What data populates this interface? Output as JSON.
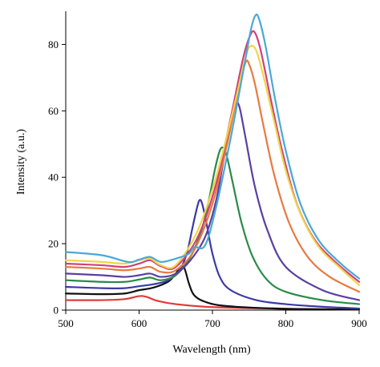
{
  "chart_data": {
    "type": "line",
    "title": "",
    "xlabel": "Wavelength (nm)",
    "ylabel": "Intensity (a.u.)",
    "xlim": [
      500,
      900
    ],
    "ylim": [
      0,
      90
    ],
    "x_ticks": [
      500,
      600,
      700,
      800,
      900
    ],
    "y_ticks": [
      0,
      20,
      40,
      60,
      80
    ],
    "grid": false,
    "legend": "none",
    "series": [
      {
        "color": "#e03a3a",
        "points": [
          [
            500,
            3
          ],
          [
            550,
            3
          ],
          [
            580,
            3.3
          ],
          [
            600,
            4.2
          ],
          [
            610,
            4
          ],
          [
            625,
            2.8
          ],
          [
            650,
            1.8
          ],
          [
            700,
            0.9
          ],
          [
            800,
            0.4
          ],
          [
            900,
            0.2
          ]
        ]
      },
      {
        "color": "#111111",
        "points": [
          [
            500,
            5
          ],
          [
            550,
            4.8
          ],
          [
            580,
            5
          ],
          [
            600,
            6
          ],
          [
            620,
            6.8
          ],
          [
            640,
            8.6
          ],
          [
            650,
            11
          ],
          [
            657,
            13.2
          ],
          [
            662,
            12.5
          ],
          [
            668,
            8
          ],
          [
            675,
            4.5
          ],
          [
            690,
            2.5
          ],
          [
            720,
            1.2
          ],
          [
            800,
            0.4
          ],
          [
            900,
            0.2
          ]
        ]
      },
      {
        "color": "#3a3aa8",
        "points": [
          [
            500,
            7
          ],
          [
            550,
            6.6
          ],
          [
            580,
            6.6
          ],
          [
            600,
            7.2
          ],
          [
            620,
            7.8
          ],
          [
            640,
            9
          ],
          [
            655,
            12
          ],
          [
            665,
            17
          ],
          [
            672,
            24
          ],
          [
            677,
            29
          ],
          [
            682,
            33
          ],
          [
            686,
            32
          ],
          [
            692,
            26
          ],
          [
            700,
            17
          ],
          [
            710,
            10
          ],
          [
            725,
            6
          ],
          [
            760,
            3
          ],
          [
            800,
            1.8
          ],
          [
            850,
            1
          ],
          [
            900,
            0.5
          ]
        ]
      },
      {
        "color": "#2a8a48",
        "points": [
          [
            500,
            9
          ],
          [
            550,
            8.5
          ],
          [
            580,
            8.5
          ],
          [
            600,
            9.2
          ],
          [
            615,
            9.8
          ],
          [
            630,
            9
          ],
          [
            650,
            10.5
          ],
          [
            670,
            16
          ],
          [
            685,
            24
          ],
          [
            695,
            33
          ],
          [
            703,
            42
          ],
          [
            710,
            48
          ],
          [
            715,
            48.8
          ],
          [
            720,
            46
          ],
          [
            728,
            38
          ],
          [
            740,
            26
          ],
          [
            755,
            16
          ],
          [
            775,
            9
          ],
          [
            800,
            5.5
          ],
          [
            850,
            3
          ],
          [
            900,
            1.8
          ]
        ]
      },
      {
        "color": "#5a3fa3",
        "points": [
          [
            500,
            11
          ],
          [
            550,
            10.5
          ],
          [
            580,
            10
          ],
          [
            600,
            10.5
          ],
          [
            615,
            11
          ],
          [
            630,
            10
          ],
          [
            650,
            11
          ],
          [
            670,
            15
          ],
          [
            690,
            22
          ],
          [
            705,
            33
          ],
          [
            715,
            45
          ],
          [
            725,
            56
          ],
          [
            732,
            62
          ],
          [
            737,
            61
          ],
          [
            745,
            52
          ],
          [
            758,
            37
          ],
          [
            775,
            24
          ],
          [
            800,
            13
          ],
          [
            850,
            6
          ],
          [
            900,
            3
          ]
        ]
      },
      {
        "color": "#e87a40",
        "points": [
          [
            500,
            13
          ],
          [
            550,
            12.5
          ],
          [
            580,
            12
          ],
          [
            600,
            12.5
          ],
          [
            615,
            13
          ],
          [
            630,
            11.5
          ],
          [
            650,
            12
          ],
          [
            675,
            18
          ],
          [
            700,
            32
          ],
          [
            720,
            50
          ],
          [
            735,
            66
          ],
          [
            745,
            74.5
          ],
          [
            750,
            74
          ],
          [
            758,
            68
          ],
          [
            770,
            55
          ],
          [
            785,
            40
          ],
          [
            805,
            26
          ],
          [
            830,
            16
          ],
          [
            860,
            10
          ],
          [
            900,
            5.5
          ]
        ]
      },
      {
        "color": "#d0407a",
        "points": [
          [
            500,
            14
          ],
          [
            550,
            13.5
          ],
          [
            580,
            13
          ],
          [
            600,
            14
          ],
          [
            615,
            15
          ],
          [
            630,
            13.2
          ],
          [
            650,
            13
          ],
          [
            680,
            22
          ],
          [
            705,
            38
          ],
          [
            725,
            58
          ],
          [
            742,
            76
          ],
          [
            752,
            83
          ],
          [
            758,
            83.5
          ],
          [
            766,
            78
          ],
          [
            780,
            63
          ],
          [
            795,
            48
          ],
          [
            815,
            32
          ],
          [
            840,
            21
          ],
          [
            870,
            14
          ],
          [
            900,
            8.5
          ]
        ]
      },
      {
        "color": "#f2d44a",
        "points": [
          [
            500,
            15
          ],
          [
            550,
            14.5
          ],
          [
            580,
            14
          ],
          [
            600,
            15
          ],
          [
            615,
            15.5
          ],
          [
            630,
            13.5
          ],
          [
            650,
            13.5
          ],
          [
            680,
            24
          ],
          [
            705,
            40
          ],
          [
            728,
            60
          ],
          [
            745,
            76
          ],
          [
            752,
            79.5
          ],
          [
            760,
            78
          ],
          [
            770,
            70
          ],
          [
            785,
            56
          ],
          [
            800,
            42
          ],
          [
            820,
            29
          ],
          [
            845,
            19
          ],
          [
            875,
            12.5
          ],
          [
            900,
            7.5
          ]
        ]
      },
      {
        "color": "#4aa8d6",
        "points": [
          [
            500,
            17.5
          ],
          [
            550,
            16.5
          ],
          [
            585,
            14.5
          ],
          [
            600,
            15.2
          ],
          [
            615,
            16
          ],
          [
            630,
            14.5
          ],
          [
            650,
            15.5
          ],
          [
            668,
            17
          ],
          [
            675,
            19
          ],
          [
            690,
            19.5
          ],
          [
            705,
            31
          ],
          [
            725,
            52
          ],
          [
            742,
            72
          ],
          [
            752,
            84
          ],
          [
            758,
            88.5
          ],
          [
            763,
            88
          ],
          [
            772,
            80
          ],
          [
            785,
            64
          ],
          [
            800,
            48
          ],
          [
            820,
            32
          ],
          [
            845,
            21
          ],
          [
            875,
            14
          ],
          [
            900,
            9.5
          ]
        ]
      }
    ]
  }
}
